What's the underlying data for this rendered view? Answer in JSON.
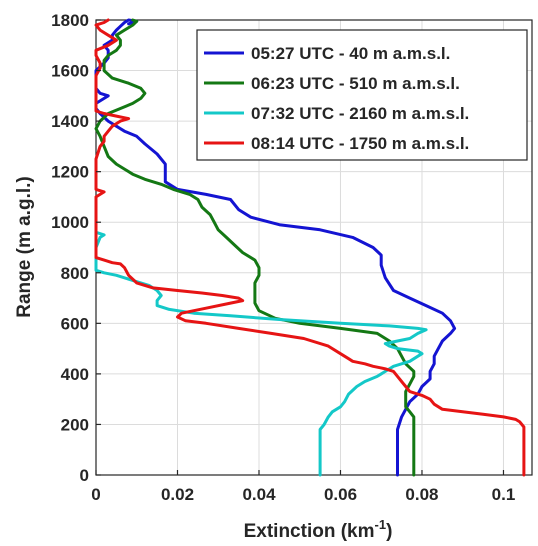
{
  "chart_data": {
    "type": "line",
    "xlabel": "Extinction (km",
    "xlabel_sup": "-1",
    "xlabel_close": ")",
    "ylabel": "Range (m a.g.l.)",
    "xlim": [
      0,
      0.107
    ],
    "ylim": [
      0,
      1800
    ],
    "xticks": [
      {
        "value": 0,
        "label": "0"
      },
      {
        "value": 0.02,
        "label": "0.02"
      },
      {
        "value": 0.04,
        "label": "0.04"
      },
      {
        "value": 0.06,
        "label": "0.06"
      },
      {
        "value": 0.08,
        "label": "0.08"
      },
      {
        "value": 0.1,
        "label": "0.1"
      }
    ],
    "yticks": [
      {
        "value": 0,
        "label": "0"
      },
      {
        "value": 200,
        "label": "200"
      },
      {
        "value": 400,
        "label": "400"
      },
      {
        "value": 600,
        "label": "600"
      },
      {
        "value": 800,
        "label": "800"
      },
      {
        "value": 1000,
        "label": "1000"
      },
      {
        "value": 1200,
        "label": "1200"
      },
      {
        "value": 1400,
        "label": "1400"
      },
      {
        "value": 1600,
        "label": "1600"
      },
      {
        "value": 1800,
        "label": "1800"
      }
    ],
    "grid": true,
    "legend_position": "top-right",
    "series": [
      {
        "name": "05:27 UTC - 40 m a.m.s.l.",
        "color": "#1414d2",
        "points": [
          [
            0.074,
            0
          ],
          [
            0.074,
            100
          ],
          [
            0.074,
            180
          ],
          [
            0.075,
            230
          ],
          [
            0.076,
            260
          ],
          [
            0.077,
            290
          ],
          [
            0.079,
            320
          ],
          [
            0.08,
            350
          ],
          [
            0.082,
            380
          ],
          [
            0.082,
            410
          ],
          [
            0.083,
            440
          ],
          [
            0.083,
            470
          ],
          [
            0.084,
            500
          ],
          [
            0.085,
            530
          ],
          [
            0.087,
            560
          ],
          [
            0.088,
            580
          ],
          [
            0.087,
            610
          ],
          [
            0.085,
            640
          ],
          [
            0.081,
            670
          ],
          [
            0.077,
            700
          ],
          [
            0.073,
            730
          ],
          [
            0.071,
            780
          ],
          [
            0.07,
            830
          ],
          [
            0.07,
            870
          ],
          [
            0.068,
            900
          ],
          [
            0.063,
            940
          ],
          [
            0.055,
            970
          ],
          [
            0.045,
            990
          ],
          [
            0.038,
            1020
          ],
          [
            0.035,
            1050
          ],
          [
            0.033,
            1090
          ],
          [
            0.027,
            1110
          ],
          [
            0.02,
            1130
          ],
          [
            0.017,
            1160
          ],
          [
            0.017,
            1190
          ],
          [
            0.017,
            1230
          ],
          [
            0.015,
            1270
          ],
          [
            0.012,
            1310
          ],
          [
            0.01,
            1340
          ],
          [
            0.007,
            1360
          ],
          [
            0.005,
            1380
          ],
          [
            0.003,
            1400
          ],
          [
            0.001,
            1430
          ],
          [
            0,
            1450
          ],
          [
            0,
            1470
          ],
          [
            0.002,
            1490
          ],
          [
            0.003,
            1500
          ],
          [
            0.001,
            1510
          ],
          [
            0,
            1530
          ],
          [
            0,
            1560
          ],
          [
            0,
            1600
          ],
          [
            0.002,
            1630
          ],
          [
            0.003,
            1650
          ],
          [
            0.003,
            1680
          ],
          [
            0.002,
            1700
          ],
          [
            0.004,
            1720
          ],
          [
            0.004,
            1740
          ],
          [
            0.005,
            1760
          ],
          [
            0.006,
            1775
          ],
          [
            0.007,
            1790
          ],
          [
            0.008,
            1800
          ],
          [
            0.01,
            1795
          ],
          [
            0.008,
            1785
          ]
        ]
      },
      {
        "name": "06:23 UTC - 510 m a.m.s.l.",
        "color": "#147814",
        "points": [
          [
            0.078,
            0
          ],
          [
            0.078,
            100
          ],
          [
            0.078,
            200
          ],
          [
            0.078,
            230
          ],
          [
            0.077,
            250
          ],
          [
            0.076,
            270
          ],
          [
            0.076,
            290
          ],
          [
            0.076,
            310
          ],
          [
            0.076,
            330
          ],
          [
            0.077,
            360
          ],
          [
            0.078,
            390
          ],
          [
            0.078,
            410
          ],
          [
            0.076,
            440
          ],
          [
            0.075,
            470
          ],
          [
            0.074,
            500
          ],
          [
            0.072,
            530
          ],
          [
            0.069,
            560
          ],
          [
            0.06,
            580
          ],
          [
            0.05,
            600
          ],
          [
            0.044,
            620
          ],
          [
            0.04,
            650
          ],
          [
            0.039,
            680
          ],
          [
            0.039,
            720
          ],
          [
            0.039,
            760
          ],
          [
            0.04,
            790
          ],
          [
            0.04,
            820
          ],
          [
            0.039,
            850
          ],
          [
            0.036,
            880
          ],
          [
            0.034,
            910
          ],
          [
            0.032,
            940
          ],
          [
            0.03,
            970
          ],
          [
            0.029,
            1000
          ],
          [
            0.028,
            1030
          ],
          [
            0.026,
            1060
          ],
          [
            0.025,
            1090
          ],
          [
            0.023,
            1110
          ],
          [
            0.019,
            1130
          ],
          [
            0.016,
            1150
          ],
          [
            0.012,
            1170
          ],
          [
            0.009,
            1190
          ],
          [
            0.007,
            1210
          ],
          [
            0.005,
            1230
          ],
          [
            0.003,
            1260
          ],
          [
            0.002,
            1300
          ],
          [
            0.001,
            1340
          ],
          [
            0,
            1370
          ],
          [
            0.001,
            1400
          ],
          [
            0.003,
            1430
          ],
          [
            0.006,
            1450
          ],
          [
            0.009,
            1470
          ],
          [
            0.011,
            1490
          ],
          [
            0.012,
            1510
          ],
          [
            0.011,
            1530
          ],
          [
            0.008,
            1550
          ],
          [
            0.004,
            1570
          ],
          [
            0.002,
            1600
          ],
          [
            0.002,
            1640
          ],
          [
            0.003,
            1660
          ],
          [
            0.004,
            1670
          ],
          [
            0.005,
            1680
          ],
          [
            0.006,
            1700
          ],
          [
            0.006,
            1720
          ],
          [
            0.005,
            1740
          ],
          [
            0.007,
            1760
          ],
          [
            0.009,
            1780
          ],
          [
            0.01,
            1795
          ],
          [
            0.009,
            1800
          ]
        ]
      },
      {
        "name": "07:32 UTC - 2160 m a.m.s.l.",
        "color": "#14c8c8",
        "points": [
          [
            0.055,
            0
          ],
          [
            0.055,
            100
          ],
          [
            0.055,
            150
          ],
          [
            0.055,
            180
          ],
          [
            0.056,
            200
          ],
          [
            0.057,
            230
          ],
          [
            0.058,
            250
          ],
          [
            0.06,
            270
          ],
          [
            0.061,
            290
          ],
          [
            0.062,
            320
          ],
          [
            0.064,
            350
          ],
          [
            0.066,
            370
          ],
          [
            0.069,
            390
          ],
          [
            0.071,
            410
          ],
          [
            0.073,
            430
          ],
          [
            0.075,
            440
          ],
          [
            0.077,
            450
          ],
          [
            0.079,
            470
          ],
          [
            0.08,
            480
          ],
          [
            0.079,
            490
          ],
          [
            0.074,
            500
          ],
          [
            0.072,
            510
          ],
          [
            0.071,
            520
          ],
          [
            0.074,
            530
          ],
          [
            0.077,
            540
          ],
          [
            0.079,
            560
          ],
          [
            0.081,
            575
          ],
          [
            0.079,
            580
          ],
          [
            0.072,
            590
          ],
          [
            0.06,
            600
          ],
          [
            0.045,
            615
          ],
          [
            0.033,
            630
          ],
          [
            0.024,
            640
          ],
          [
            0.018,
            655
          ],
          [
            0.015,
            670
          ],
          [
            0.015,
            690
          ],
          [
            0.016,
            710
          ],
          [
            0.015,
            730
          ],
          [
            0.013,
            750
          ],
          [
            0.009,
            770
          ],
          [
            0.005,
            790
          ],
          [
            0.002,
            800
          ],
          [
            0,
            810
          ],
          [
            0,
            840
          ],
          [
            0,
            900
          ],
          [
            0.001,
            940
          ],
          [
            0.002,
            950
          ],
          [
            0,
            960
          ]
        ]
      },
      {
        "name": "08:14 UTC - 1750 m a.m.s.l.",
        "color": "#e61414",
        "points": [
          [
            0.105,
            0
          ],
          [
            0.105,
            100
          ],
          [
            0.105,
            150
          ],
          [
            0.105,
            190
          ],
          [
            0.104,
            210
          ],
          [
            0.103,
            220
          ],
          [
            0.1,
            230
          ],
          [
            0.095,
            240
          ],
          [
            0.09,
            250
          ],
          [
            0.085,
            260
          ],
          [
            0.083,
            280
          ],
          [
            0.082,
            300
          ],
          [
            0.08,
            315
          ],
          [
            0.077,
            330
          ],
          [
            0.076,
            350
          ],
          [
            0.075,
            370
          ],
          [
            0.074,
            390
          ],
          [
            0.073,
            410
          ],
          [
            0.071,
            420
          ],
          [
            0.068,
            430
          ],
          [
            0.066,
            440
          ],
          [
            0.063,
            450
          ],
          [
            0.062,
            460
          ],
          [
            0.06,
            480
          ],
          [
            0.057,
            510
          ],
          [
            0.051,
            540
          ],
          [
            0.043,
            560
          ],
          [
            0.035,
            580
          ],
          [
            0.027,
            600
          ],
          [
            0.022,
            610
          ],
          [
            0.02,
            625
          ],
          [
            0.021,
            640
          ],
          [
            0.027,
            660
          ],
          [
            0.033,
            680
          ],
          [
            0.036,
            690
          ],
          [
            0.035,
            700
          ],
          [
            0.031,
            710
          ],
          [
            0.026,
            720
          ],
          [
            0.02,
            730
          ],
          [
            0.014,
            740
          ],
          [
            0.01,
            760
          ],
          [
            0.008,
            790
          ],
          [
            0.007,
            820
          ],
          [
            0.006,
            835
          ],
          [
            0.004,
            840
          ],
          [
            0.002,
            850
          ],
          [
            0,
            860
          ],
          [
            0,
            900
          ],
          [
            0,
            1000
          ],
          [
            0,
            1100
          ],
          [
            0.002,
            1120
          ],
          [
            0,
            1130
          ],
          [
            0,
            1200
          ],
          [
            0,
            1250
          ],
          [
            0.001,
            1300
          ],
          [
            0.002,
            1320
          ],
          [
            0.002,
            1340
          ],
          [
            0.003,
            1360
          ],
          [
            0.004,
            1380
          ],
          [
            0.006,
            1400
          ],
          [
            0.008,
            1410
          ],
          [
            0.005,
            1420
          ],
          [
            0.002,
            1430
          ],
          [
            0,
            1440
          ],
          [
            0,
            1500
          ],
          [
            0,
            1580
          ],
          [
            0.001,
            1610
          ],
          [
            0.001,
            1630
          ],
          [
            0,
            1660
          ],
          [
            0,
            1680
          ],
          [
            0.003,
            1700
          ],
          [
            0.005,
            1720
          ],
          [
            0.003,
            1740
          ],
          [
            0.001,
            1760
          ],
          [
            0,
            1780
          ],
          [
            0.002,
            1790
          ],
          [
            0.003,
            1800
          ]
        ]
      }
    ]
  }
}
